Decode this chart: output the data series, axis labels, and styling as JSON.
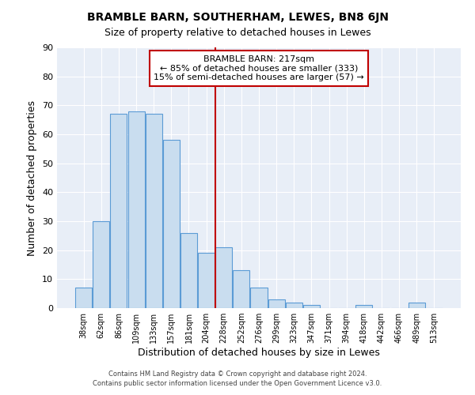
{
  "title": "BRAMBLE BARN, SOUTHERHAM, LEWES, BN8 6JN",
  "subtitle": "Size of property relative to detached houses in Lewes",
  "xlabel": "Distribution of detached houses by size in Lewes",
  "ylabel": "Number of detached properties",
  "bar_labels": [
    "38sqm",
    "62sqm",
    "86sqm",
    "109sqm",
    "133sqm",
    "157sqm",
    "181sqm",
    "204sqm",
    "228sqm",
    "252sqm",
    "276sqm",
    "299sqm",
    "323sqm",
    "347sqm",
    "371sqm",
    "394sqm",
    "418sqm",
    "442sqm",
    "466sqm",
    "489sqm",
    "513sqm"
  ],
  "bar_values": [
    7,
    30,
    67,
    68,
    67,
    58,
    26,
    19,
    21,
    13,
    7,
    3,
    2,
    1,
    0,
    0,
    1,
    0,
    0,
    2,
    0
  ],
  "bar_color": "#c9ddef",
  "bar_edge_color": "#5b9bd5",
  "vline_color": "#c00000",
  "vline_x": 7.5,
  "annotation_title": "BRAMBLE BARN: 217sqm",
  "annotation_line1": "← 85% of detached houses are smaller (333)",
  "annotation_line2": "15% of semi-detached houses are larger (57) →",
  "annotation_box_color": "#c00000",
  "ylim": [
    0,
    90
  ],
  "yticks": [
    0,
    10,
    20,
    30,
    40,
    50,
    60,
    70,
    80,
    90
  ],
  "footer1": "Contains HM Land Registry data © Crown copyright and database right 2024.",
  "footer2": "Contains public sector information licensed under the Open Government Licence v3.0.",
  "bg_color": "#ffffff",
  "plot_bg_color": "#e8eef7",
  "grid_color": "#ffffff",
  "title_fontsize": 10,
  "subtitle_fontsize": 9
}
